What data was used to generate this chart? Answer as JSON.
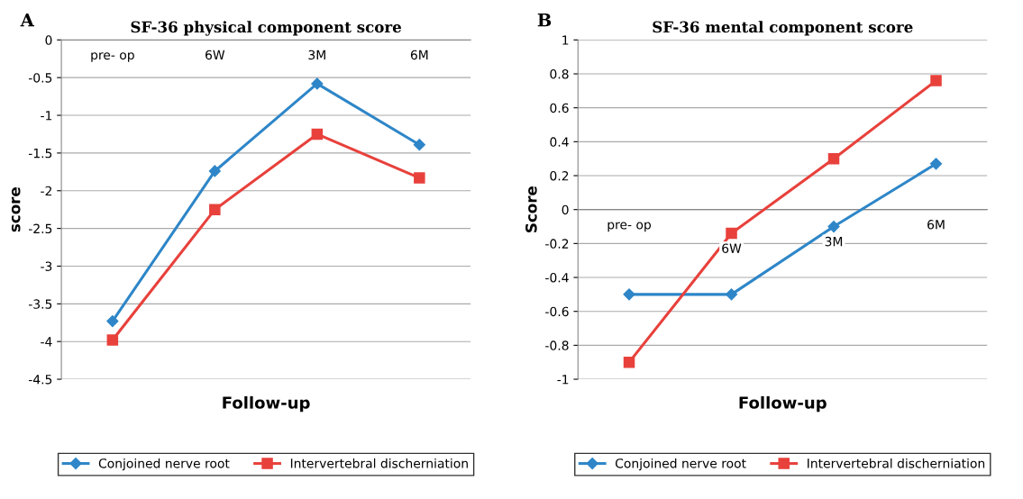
{
  "chart_data": [
    {
      "type": "line",
      "title": "SF-36 physical component score",
      "xlabel": "Follow-up",
      "ylabel": "score",
      "annotations": [
        "A"
      ],
      "categories": [
        "pre- op",
        "6W",
        "3M",
        "6M"
      ],
      "series": [
        {
          "name": "Conjoined nerve root",
          "color": "#2e86c8",
          "marker": "diamond",
          "values": [
            -3.73,
            -1.74,
            -0.58,
            -1.39
          ]
        },
        {
          "name": "Intervertebral discherniation",
          "color": "#e8413c",
          "marker": "square",
          "values": [
            -3.98,
            -2.25,
            -1.25,
            -1.83
          ]
        }
      ],
      "ylim": [
        -4.5,
        0
      ],
      "yticks": [
        0,
        -0.5,
        -1,
        -1.5,
        -2,
        -2.5,
        -3,
        -3.5,
        -4,
        -4.5
      ],
      "grid": "y",
      "legend": "bottom"
    },
    {
      "type": "line",
      "title": "SF-36 mental component score",
      "xlabel": "Follow-up",
      "ylabel": "Score",
      "annotations": [
        "B"
      ],
      "categories": [
        "pre- op",
        "6W",
        "3M",
        "6M"
      ],
      "series": [
        {
          "name": "Conjoined nerve root",
          "color": "#2e86c8",
          "marker": "diamond",
          "values": [
            -0.5,
            -0.5,
            -0.1,
            0.27
          ]
        },
        {
          "name": "Intervertebral discherniation",
          "color": "#e8413c",
          "marker": "square",
          "values": [
            -0.9,
            -0.14,
            0.3,
            0.76
          ]
        }
      ],
      "ylim": [
        -1,
        1
      ],
      "yticks": [
        1,
        0.8,
        0.6,
        0.4,
        0.2,
        0,
        -0.2,
        -0.4,
        -0.6,
        -0.8,
        -1
      ],
      "grid": "y",
      "legend": "bottom"
    }
  ]
}
